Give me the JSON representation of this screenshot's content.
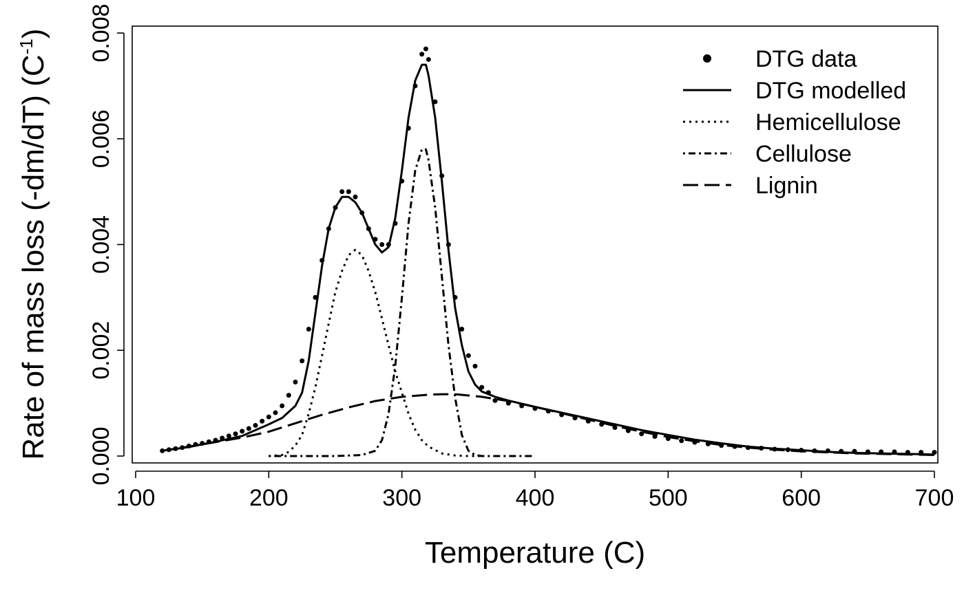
{
  "chart_data": {
    "type": "line",
    "xlabel": "Temperature (C)",
    "ylabel": {
      "prefix": "Rate of mass loss (-dm/dT) (C",
      "superscript": "-1",
      "suffix": ")"
    },
    "xlim": [
      100,
      700
    ],
    "ylim": [
      0,
      0.008
    ],
    "x_ticks": [
      "100",
      "200",
      "300",
      "400",
      "500",
      "600",
      "700"
    ],
    "y_ticks": [
      "0.000",
      "0.002",
      "0.004",
      "0.006",
      "0.008"
    ],
    "grid": false,
    "legend_position": "top-right",
    "series": [
      {
        "name": "DTG data",
        "style": "points",
        "x": [
          120,
          125,
          130,
          135,
          140,
          145,
          150,
          155,
          160,
          165,
          170,
          175,
          180,
          185,
          190,
          195,
          200,
          205,
          210,
          215,
          220,
          225,
          230,
          235,
          240,
          245,
          250,
          255,
          260,
          265,
          270,
          275,
          280,
          285,
          290,
          295,
          300,
          305,
          310,
          315,
          318,
          320,
          325,
          330,
          335,
          340,
          345,
          350,
          355,
          360,
          365,
          370,
          380,
          390,
          400,
          410,
          420,
          430,
          440,
          450,
          460,
          470,
          480,
          490,
          500,
          510,
          520,
          530,
          540,
          550,
          560,
          570,
          580,
          590,
          600,
          610,
          620,
          630,
          640,
          650,
          660,
          670,
          680,
          690,
          700
        ],
        "y": [
          0.0001,
          0.00012,
          0.00014,
          0.00016,
          0.00019,
          0.00022,
          0.00024,
          0.00027,
          0.0003,
          0.00034,
          0.00038,
          0.00042,
          0.00047,
          0.00052,
          0.00058,
          0.00066,
          0.00074,
          0.00082,
          0.00095,
          0.00115,
          0.0014,
          0.0018,
          0.0024,
          0.003,
          0.0037,
          0.0043,
          0.0047,
          0.005,
          0.005,
          0.0049,
          0.0046,
          0.0043,
          0.0041,
          0.004,
          0.004,
          0.0044,
          0.0052,
          0.0062,
          0.007,
          0.0076,
          0.0077,
          0.0075,
          0.0067,
          0.0053,
          0.004,
          0.003,
          0.0024,
          0.0019,
          0.0017,
          0.0013,
          0.0012,
          0.00105,
          0.001,
          0.00095,
          0.0009,
          0.00085,
          0.00078,
          0.00072,
          0.00066,
          0.0006,
          0.00054,
          0.00048,
          0.00042,
          0.00037,
          0.00033,
          0.00029,
          0.00026,
          0.00023,
          0.0002,
          0.00018,
          0.00016,
          0.00015,
          0.00013,
          0.00012,
          0.00011,
          0.0001,
          0.0001,
          9e-05,
          9e-05,
          8e-05,
          8e-05,
          8e-05,
          7e-05,
          7e-05,
          7e-05
        ]
      },
      {
        "name": "DTG modelled",
        "style": "solid",
        "x": [
          120,
          140,
          160,
          180,
          200,
          210,
          220,
          225,
          230,
          235,
          240,
          245,
          250,
          255,
          260,
          265,
          270,
          275,
          280,
          285,
          290,
          295,
          300,
          305,
          310,
          315,
          318,
          320,
          325,
          330,
          335,
          340,
          345,
          350,
          355,
          360,
          370,
          380,
          400,
          420,
          440,
          460,
          480,
          500,
          520,
          540,
          560,
          580,
          600,
          620,
          640,
          660,
          680,
          700
        ],
        "y": [
          0.0001,
          0.00017,
          0.00027,
          0.00038,
          0.0006,
          0.00072,
          0.00095,
          0.0012,
          0.0018,
          0.0027,
          0.0036,
          0.0043,
          0.0047,
          0.0049,
          0.0049,
          0.0048,
          0.0046,
          0.0043,
          0.004,
          0.00385,
          0.00395,
          0.0045,
          0.0054,
          0.0064,
          0.0071,
          0.0074,
          0.0074,
          0.0072,
          0.0064,
          0.0052,
          0.0039,
          0.0028,
          0.0021,
          0.0016,
          0.00135,
          0.00122,
          0.00112,
          0.00105,
          0.00093,
          0.00082,
          0.00071,
          0.0006,
          0.00049,
          0.0004,
          0.00031,
          0.00024,
          0.00018,
          0.00014,
          0.00011,
          8e-05,
          6e-05,
          5e-05,
          4e-05,
          3e-05
        ]
      },
      {
        "name": "Hemicellulose",
        "style": "dotted",
        "x": [
          200,
          210,
          215,
          220,
          225,
          230,
          235,
          240,
          245,
          250,
          255,
          260,
          265,
          270,
          275,
          280,
          285,
          290,
          295,
          300,
          305,
          310,
          315,
          320,
          330,
          340,
          350,
          360
        ],
        "y": [
          0,
          2e-05,
          8e-05,
          0.0002,
          0.0004,
          0.0008,
          0.0013,
          0.0019,
          0.0025,
          0.0031,
          0.0035,
          0.0038,
          0.0039,
          0.0038,
          0.0035,
          0.0031,
          0.0026,
          0.0021,
          0.0016,
          0.0012,
          0.0008,
          0.0005,
          0.0003,
          0.00018,
          5e-05,
          1e-05,
          0,
          0
        ]
      },
      {
        "name": "Cellulose",
        "style": "dash-dot",
        "x": [
          200,
          250,
          270,
          280,
          285,
          290,
          295,
          300,
          305,
          310,
          315,
          318,
          320,
          325,
          330,
          335,
          340,
          345,
          350,
          355,
          360,
          400
        ],
        "y": [
          0,
          0,
          2e-05,
          0.0001,
          0.0003,
          0.0008,
          0.0017,
          0.003,
          0.0044,
          0.0054,
          0.0058,
          0.0058,
          0.0056,
          0.0047,
          0.0034,
          0.0021,
          0.0011,
          0.0004,
          0.0001,
          2e-05,
          0,
          0
        ]
      },
      {
        "name": "Lignin",
        "style": "long-dash",
        "x": [
          120,
          150,
          180,
          200,
          220,
          240,
          260,
          280,
          300,
          320,
          330,
          340,
          360,
          380,
          400,
          420,
          440,
          460,
          480,
          500,
          520,
          540,
          560,
          580,
          600,
          620,
          640,
          660,
          680,
          700
        ],
        "y": [
          0.0001,
          0.00022,
          0.00035,
          0.00046,
          0.00062,
          0.00078,
          0.00092,
          0.00104,
          0.00112,
          0.00116,
          0.00117,
          0.00117,
          0.00112,
          0.00104,
          0.00093,
          0.00081,
          0.00069,
          0.00057,
          0.00046,
          0.00036,
          0.00028,
          0.00021,
          0.00016,
          0.00012,
          9e-05,
          7e-05,
          5e-05,
          4e-05,
          3e-05,
          2e-05
        ]
      }
    ]
  }
}
